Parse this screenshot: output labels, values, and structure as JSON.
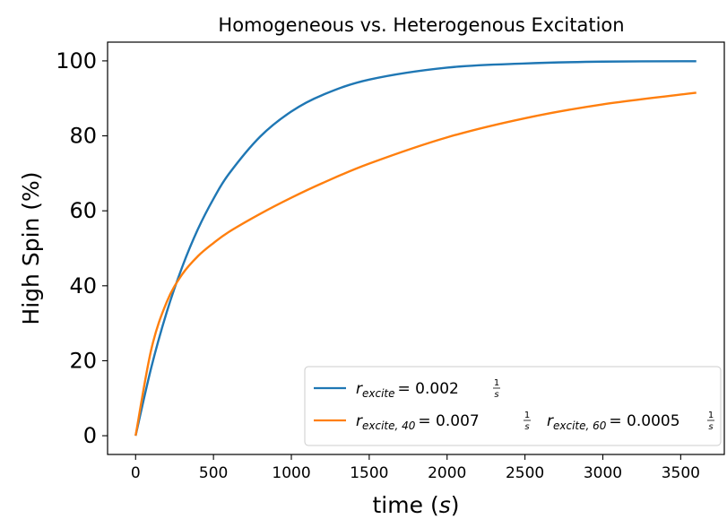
{
  "chart_data": {
    "type": "line",
    "title": "Homogeneous vs. Heterogenous Excitation",
    "xlabel": "time",
    "xlabel_unit": "s",
    "ylabel": "High Spin (%)",
    "xlim": [
      -180,
      3780
    ],
    "ylim": [
      -5,
      105
    ],
    "xticks": [
      "0",
      "500",
      "1000",
      "1500",
      "2000",
      "2500",
      "3000",
      "3500"
    ],
    "yticks": [
      "0",
      "20",
      "40",
      "60",
      "80",
      "100"
    ],
    "grid": false,
    "legend_position": "lower-right",
    "x": [
      0,
      100,
      200,
      300,
      400,
      500,
      600,
      800,
      1000,
      1200,
      1500,
      2000,
      2500,
      3000,
      3600
    ],
    "series": [
      {
        "color": "#1f77b4",
        "legend": {
          "symbol": "r",
          "subscript": "excite",
          "equals": "= 0.002",
          "unit_num": "1",
          "unit_den": "s"
        },
        "values": [
          0,
          18.1,
          33.0,
          45.1,
          55.1,
          63.2,
          69.9,
          79.8,
          86.5,
          90.9,
          95.0,
          98.2,
          99.3,
          99.8,
          99.9
        ]
      },
      {
        "color": "#ff7f0e",
        "legend": {
          "part1": {
            "symbol": "r",
            "subscript": "excite, 40",
            "equals": "= 0.007",
            "unit_num": "1",
            "unit_den": "s"
          },
          "part2": {
            "symbol": "r",
            "subscript": "excite, 60",
            "equals": "= 0.0005",
            "unit_num": "1",
            "unit_den": "s"
          }
        },
        "values": [
          0,
          22.9,
          35.7,
          43.1,
          47.9,
          51.4,
          54.4,
          59.2,
          63.5,
          67.4,
          72.6,
          79.6,
          84.7,
          88.4,
          91.5
        ]
      }
    ]
  }
}
